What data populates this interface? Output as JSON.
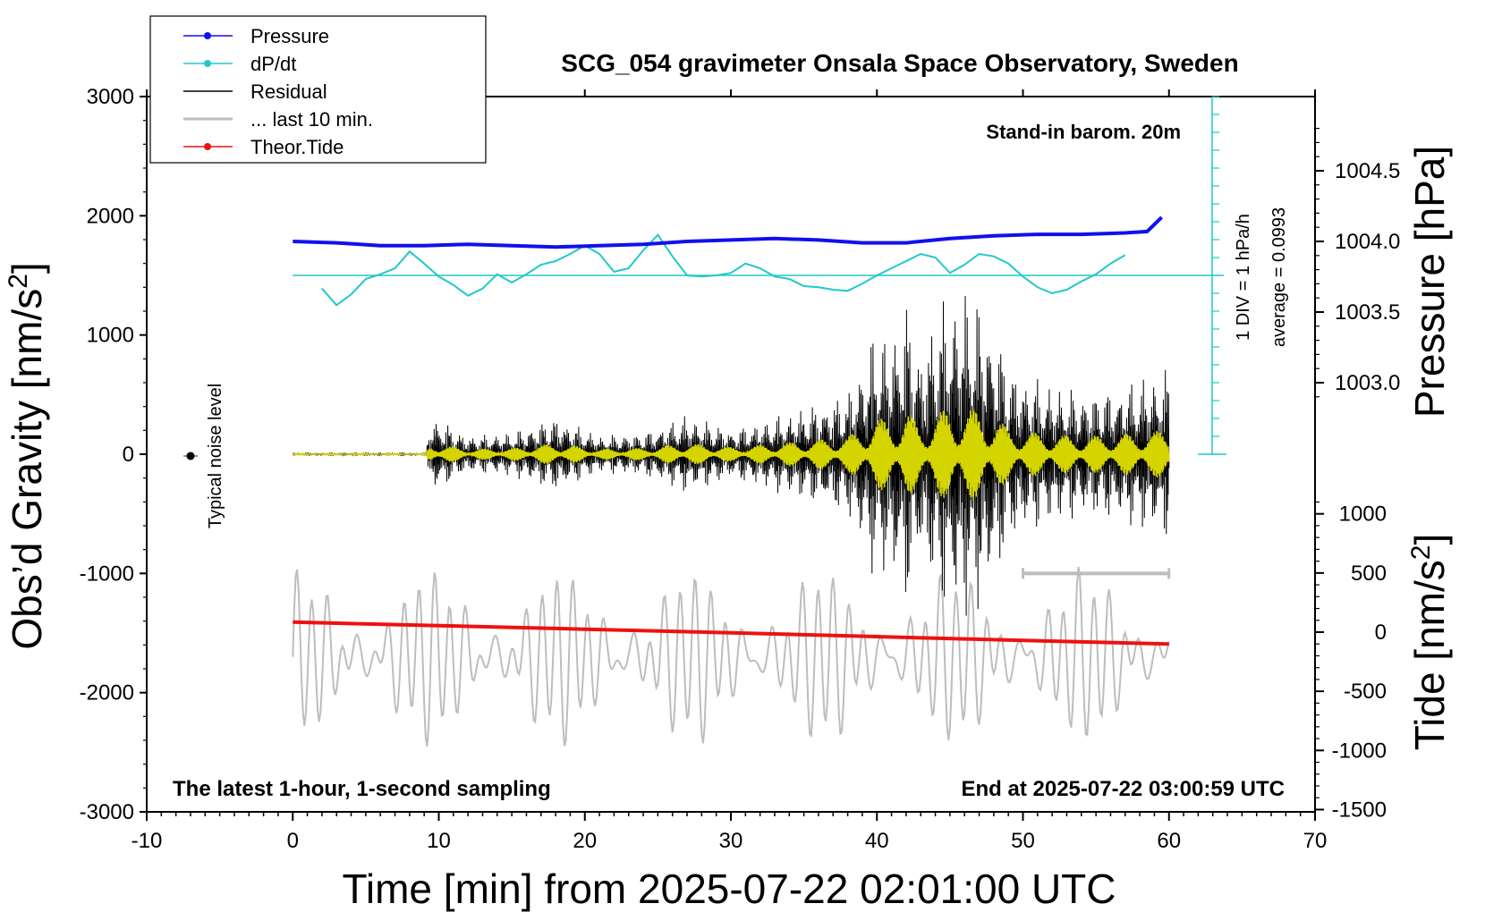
{
  "chart_data": {
    "type": "line",
    "title": "SCG_054 gravimeter Onsala Space Observatory, Sweden",
    "note_top_right": "Stand-in barom. 20m",
    "note_bottom_left": "The latest 1-hour, 1-second sampling",
    "note_bottom_right": "End at 2025-07-22 03:00:59 UTC",
    "xlabel": "Time [min] from 2025-07-22 02:01:00 UTC",
    "ylabel_left_main": "Obs’d Gravity [nm/s",
    "ylabel_left_sup": "2",
    "ylabel_left_close": "]",
    "ylabel_right_pressure": "Pressure [hPa]",
    "ylabel_right_tide_main": "Tide [nm/s",
    "ylabel_right_tide_sup": "2",
    "ylabel_right_tide_close": "]",
    "noise_label": "Typical noise level",
    "dpdt_scale_label": "1 DIV = 1 hPa/h",
    "dpdt_average_label": "average = 0.0993",
    "xlim": [
      -10,
      70
    ],
    "ylim_gravity": [
      -3000,
      3000
    ],
    "ylim_tide": [
      -1500,
      1500
    ],
    "x_ticks": [
      "-10",
      "0",
      "10",
      "20",
      "30",
      "40",
      "50",
      "60",
      "70"
    ],
    "y_ticks_left": [
      "3000",
      "2000",
      "1000",
      "0",
      "-1000",
      "-2000",
      "-3000"
    ],
    "y_ticks_pressure": [
      "1004.5",
      "1004.0",
      "1003.5",
      "1003.0"
    ],
    "y_ticks_tide": [
      "1000",
      "500",
      "0",
      "-500",
      "-1000",
      "-1500"
    ],
    "legend": [
      {
        "label": "Pressure",
        "color": "#1010ee"
      },
      {
        "label": "dP/dt",
        "color": "#22c8c8"
      },
      {
        "label": "Residual",
        "color": "#000000"
      },
      {
        "label": "... last 10 min.",
        "color": "#bdbdbd"
      },
      {
        "label": "Theor.Tide",
        "color": "#ee1111"
      }
    ],
    "series": [
      {
        "name": "Pressure",
        "unit": "hPa",
        "x": [
          0,
          3,
          6,
          9,
          12,
          15,
          18,
          21,
          24,
          27,
          30,
          33,
          36,
          39,
          42,
          45,
          48,
          51,
          54,
          57,
          58.5,
          59.5
        ],
        "values": [
          1004.0,
          1003.99,
          1003.97,
          1003.97,
          1003.98,
          1003.97,
          1003.96,
          1003.97,
          1003.98,
          1004.0,
          1004.01,
          1004.02,
          1004.01,
          1003.99,
          1003.99,
          1004.02,
          1004.04,
          1004.05,
          1004.05,
          1004.06,
          1004.07,
          1004.17
        ]
      },
      {
        "name": "dP/dt",
        "unit": "nm/s2 display",
        "x": [
          2,
          3,
          4,
          5,
          6,
          7,
          8,
          9,
          10,
          11,
          12,
          13,
          14,
          15,
          16,
          17,
          18,
          19,
          20,
          21,
          22,
          23,
          24,
          25,
          26,
          27,
          28,
          29,
          30,
          31,
          32,
          33,
          34,
          35,
          36,
          37,
          38,
          39,
          40,
          41,
          42,
          43,
          44,
          45,
          46,
          47,
          48,
          49,
          50,
          51,
          52,
          53,
          54,
          55,
          56,
          57
        ],
        "values": [
          1390,
          1250,
          1340,
          1470,
          1510,
          1560,
          1700,
          1600,
          1490,
          1420,
          1330,
          1390,
          1510,
          1440,
          1510,
          1590,
          1620,
          1680,
          1750,
          1680,
          1530,
          1560,
          1710,
          1840,
          1660,
          1500,
          1490,
          1500,
          1520,
          1600,
          1560,
          1490,
          1470,
          1410,
          1400,
          1380,
          1370,
          1430,
          1500,
          1560,
          1620,
          1680,
          1650,
          1520,
          1590,
          1680,
          1660,
          1600,
          1490,
          1400,
          1350,
          1380,
          1450,
          1510,
          1600,
          1670
        ]
      },
      {
        "name": "Theor.Tide",
        "unit": "nm/s2",
        "x": [
          0,
          10,
          20,
          30,
          40,
          50,
          60
        ],
        "values": [
          85,
          55,
          25,
          -5,
          -38,
          -70,
          -100
        ]
      },
      {
        "name": "Residual (envelope)",
        "unit": "nm/s2",
        "x": [
          0,
          9,
          9.5,
          12,
          15,
          18,
          21,
          24,
          27,
          30,
          33,
          36,
          38,
          40,
          41,
          42,
          43,
          44,
          45,
          46,
          47,
          48,
          49,
          50,
          52,
          54,
          56,
          58,
          60
        ],
        "values": [
          10,
          10,
          340,
          160,
          190,
          330,
          160,
          190,
          340,
          220,
          320,
          450,
          540,
          1100,
          1050,
          1350,
          900,
          1250,
          1400,
          1440,
          1350,
          1150,
          800,
          700,
          600,
          550,
          580,
          650,
          750
        ]
      }
    ],
    "last10min_scale_bar": {
      "from_min": 50,
      "to_min": 60,
      "y": -1000
    }
  }
}
